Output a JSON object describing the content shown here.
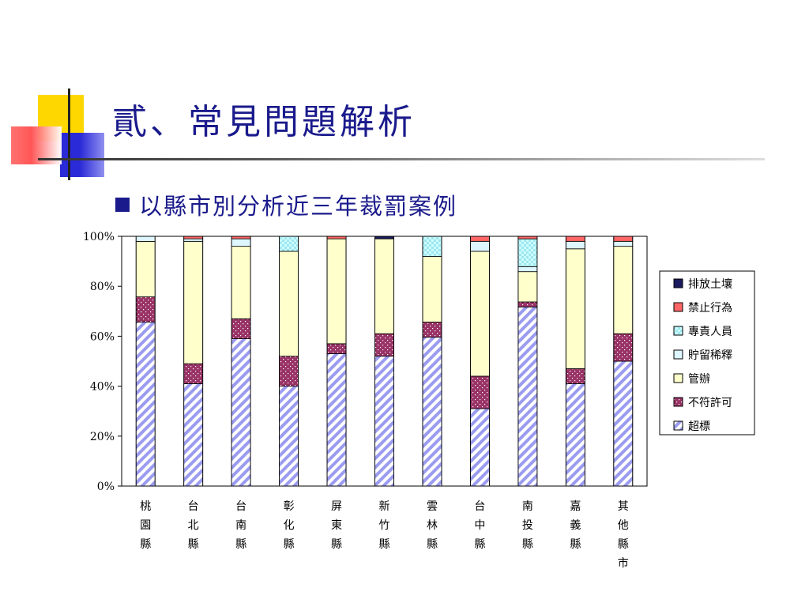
{
  "slide": {
    "title": "貳、常見問題解析",
    "bullet": "以縣市別分析近三年裁罰案例"
  },
  "colors": {
    "title": "#1a1a8c",
    "deco_yellow": "#ffd700",
    "deco_red": "#ff5050",
    "deco_blue": "#2a2ad8"
  },
  "chart_data": {
    "type": "bar",
    "stacked": "percent",
    "title": "",
    "xlabel": "",
    "ylabel": "",
    "ylim": [
      0,
      100
    ],
    "yticks": [
      "0%",
      "20%",
      "40%",
      "60%",
      "80%",
      "100%"
    ],
    "grid": false,
    "legend_position": "right",
    "categories": [
      "桃園縣",
      "台北縣",
      "台南縣",
      "彰化縣",
      "屏東縣",
      "新竹縣",
      "雲林縣",
      "台中縣",
      "南投縣",
      "嘉義縣",
      "其他縣市"
    ],
    "series": [
      {
        "name": "超標",
        "pattern": "diag-purple",
        "values": [
          65,
          41,
          59,
          40,
          53,
          52,
          59,
          31,
          71,
          41,
          50
        ]
      },
      {
        "name": "不符許可",
        "pattern": "dots-maroon",
        "values": [
          10,
          8,
          8,
          12,
          4,
          9,
          6,
          13,
          2,
          6,
          11
        ]
      },
      {
        "name": "管辦",
        "pattern": "solid-cream",
        "values": [
          22,
          49,
          29,
          42,
          42,
          38,
          26,
          50,
          12,
          48,
          35
        ]
      },
      {
        "name": "貯留稀釋",
        "pattern": "solid-lightcyan",
        "values": [
          2,
          1,
          3,
          0,
          0,
          0,
          0,
          4,
          2,
          3,
          2
        ]
      },
      {
        "name": "專責人員",
        "pattern": "check-cyan",
        "values": [
          0,
          0,
          0,
          6,
          0,
          0,
          8,
          0,
          11,
          0,
          0
        ]
      },
      {
        "name": "禁止行為",
        "pattern": "solid-red",
        "values": [
          0,
          1,
          1,
          0,
          1,
          0,
          0,
          2,
          1,
          2,
          2
        ]
      },
      {
        "name": "排放土壤",
        "pattern": "solid-navy",
        "values": [
          0,
          0,
          0,
          0,
          0,
          1,
          0,
          0,
          0,
          0,
          0
        ]
      }
    ],
    "legend_order": [
      "排放土壤",
      "禁止行為",
      "專責人員",
      "貯留稀釋",
      "管辦",
      "不符許可",
      "超標"
    ]
  }
}
